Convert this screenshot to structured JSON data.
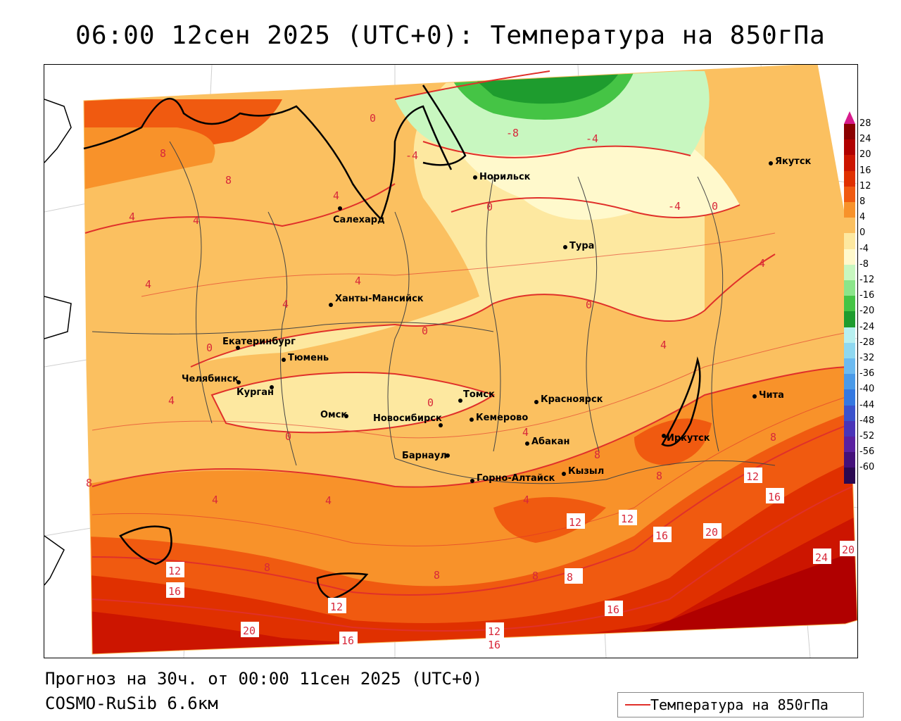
{
  "title": "06:00 12сен 2025 (UTC+0): Температура на 850гПа",
  "forecast_text": "Прогноз на 30ч. от 00:00 11сен 2025 (UTC+0)",
  "model_text": "COSMO-RuSib 6.6км",
  "legend": {
    "label": "Температура на 850гПа",
    "line_color": "#e0302a"
  },
  "colorbar": {
    "labels": [
      "28",
      "24",
      "20",
      "16",
      "12",
      "8",
      "4",
      "0",
      "-4",
      "-8",
      "-12",
      "-16",
      "-20",
      "-24",
      "-28",
      "-32",
      "-36",
      "-40",
      "-44",
      "-48",
      "-52",
      "-56",
      "-60"
    ],
    "colors": [
      "#8b0000",
      "#b00000",
      "#cc1500",
      "#e03000",
      "#f05a10",
      "#f8922a",
      "#fbc060",
      "#fde8a0",
      "#fff9cc",
      "#c8f7c0",
      "#8be58a",
      "#45c445",
      "#1e9c2e",
      "#b8f0f0",
      "#8fd8f0",
      "#6cbaf0",
      "#4a9ae8",
      "#3478e0",
      "#3a52cc",
      "#4a34b8",
      "#5a20a0",
      "#44107a",
      "#2a0850"
    ]
  },
  "cities": [
    {
      "name": "Норильск",
      "lon": 88.2,
      "lat": 69.3
    },
    {
      "name": "Якутск",
      "lon": 129.7,
      "lat": 62.0
    },
    {
      "name": "Салехард",
      "lon": 66.6,
      "lat": 66.5
    },
    {
      "name": "Тура",
      "lon": 100.2,
      "lat": 64.3
    },
    {
      "name": "Ханты-Мансийск",
      "lon": 69.0,
      "lat": 61.0
    },
    {
      "name": "Екатеринбург",
      "lon": 60.6,
      "lat": 56.8
    },
    {
      "name": "Тюмень",
      "lon": 65.5,
      "lat": 57.2
    },
    {
      "name": "Челябинск",
      "lon": 61.4,
      "lat": 55.2
    },
    {
      "name": "Курган",
      "lon": 65.3,
      "lat": 55.4
    },
    {
      "name": "Омск",
      "lon": 73.4,
      "lat": 55.0
    },
    {
      "name": "Новосибирск",
      "lon": 82.9,
      "lat": 55.0
    },
    {
      "name": "Томск",
      "lon": 85.0,
      "lat": 56.5
    },
    {
      "name": "Красноярск",
      "lon": 92.9,
      "lat": 56.0
    },
    {
      "name": "Кемерово",
      "lon": 86.1,
      "lat": 55.4
    },
    {
      "name": "Абакан",
      "lon": 91.4,
      "lat": 53.7
    },
    {
      "name": "Барнаул",
      "lon": 83.8,
      "lat": 53.4
    },
    {
      "name": "Горно-Алтайск",
      "lon": 85.9,
      "lat": 52.0
    },
    {
      "name": "Кызыл",
      "lon": 94.4,
      "lat": 51.7
    },
    {
      "name": "Иркутск",
      "lon": 104.3,
      "lat": 52.3
    },
    {
      "name": "Чита",
      "lon": 113.5,
      "lat": 52.0
    }
  ],
  "isotherm_labels": [
    "8",
    "8",
    "4",
    "4",
    "4",
    "4",
    "4",
    "4",
    "0",
    "0",
    "0",
    "0",
    "0",
    "-4",
    "-4",
    "-8",
    "-4",
    "0",
    "4",
    "4",
    "4",
    "4",
    "8",
    "8",
    "8",
    "8",
    "12",
    "12",
    "16",
    "20",
    "24",
    "20",
    "12",
    "16",
    "12",
    "16",
    "20",
    "12",
    "16",
    "12",
    "16",
    "8",
    "8",
    "8",
    "4",
    "4",
    "4",
    "0",
    "0",
    "8",
    "16"
  ]
}
